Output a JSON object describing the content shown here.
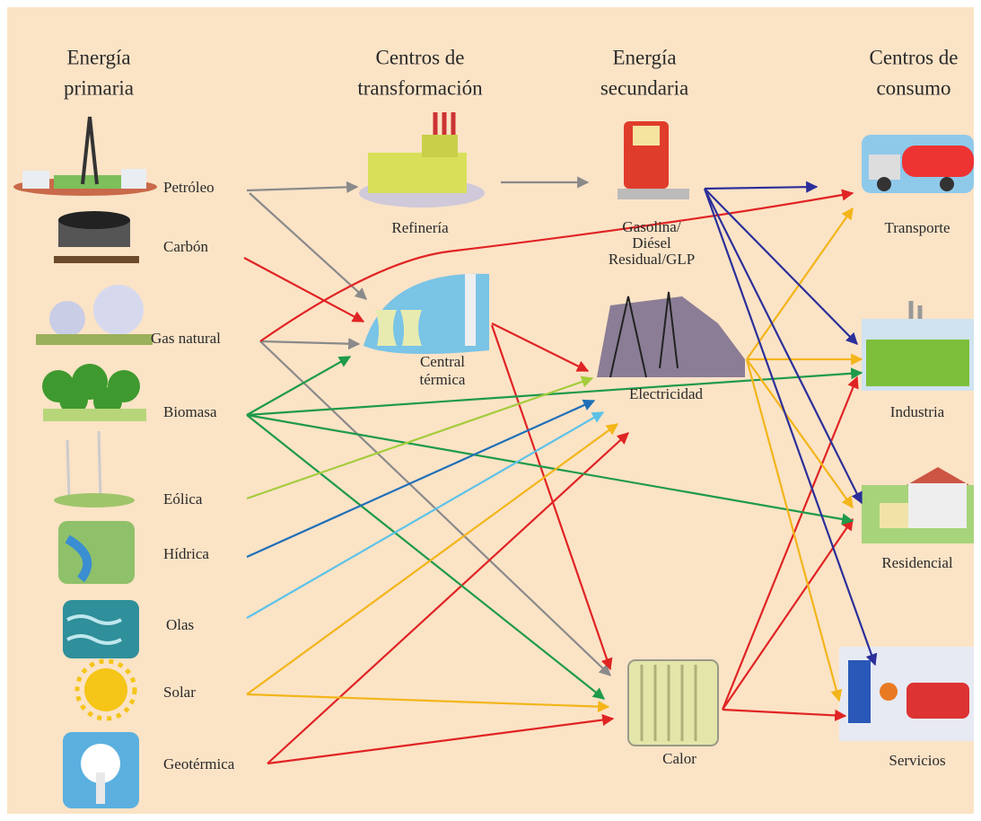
{
  "columns": [
    {
      "title_lines": [
        "Energía",
        "primaria"
      ]
    },
    {
      "title_lines": [
        "Centros de",
        "transformación"
      ]
    },
    {
      "title_lines": [
        "Energía",
        "secundaria"
      ]
    },
    {
      "title_lines": [
        "Centros de",
        "consumo"
      ]
    }
  ],
  "primary": [
    "Petróleo",
    "Carbón",
    "Gas natural",
    "Biomasa",
    "Eólica",
    "Hídrica",
    "Olas",
    "Solar",
    "Geotérmica"
  ],
  "transformation": [
    {
      "label_lines": [
        "Refinería"
      ]
    },
    {
      "label_lines": [
        "Central",
        "térmica"
      ]
    }
  ],
  "secondary": [
    {
      "label_lines": [
        "Gasolina/",
        "Diésel",
        "Residual/GLP"
      ]
    },
    {
      "label_lines": [
        "Electricidad"
      ]
    },
    {
      "label_lines": [
        "Calor"
      ]
    }
  ],
  "consumption": [
    "Transporte",
    "Industria",
    "Residencial",
    "Servicios"
  ]
}
